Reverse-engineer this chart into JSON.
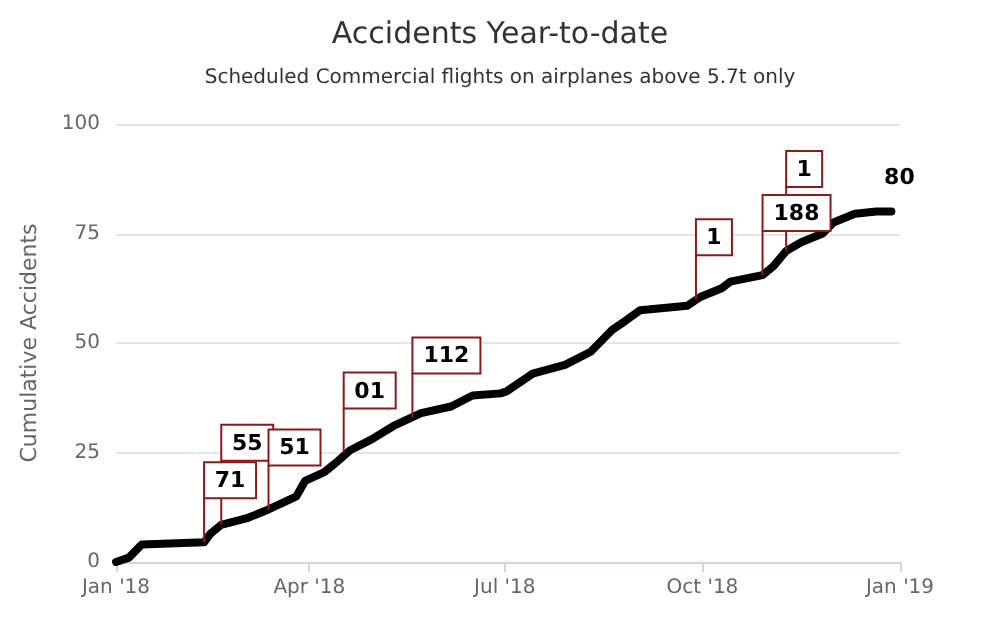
{
  "chart_data": {
    "type": "line",
    "title": "Accidents Year-to-date",
    "subtitle": "Scheduled Commercial flights on airplanes above 5.7t only",
    "ylabel": "Cumulative Accidents",
    "xlim": [
      "2018-01-01",
      "2019-01-01"
    ],
    "xticks": [
      {
        "value": "2018-01-01",
        "label": "Jan '18"
      },
      {
        "value": "2018-04-01",
        "label": "Apr '18"
      },
      {
        "value": "2018-07-01",
        "label": "Jul '18"
      },
      {
        "value": "2018-10-01",
        "label": "Oct '18"
      },
      {
        "value": "2019-01-01",
        "label": "Jan '19"
      }
    ],
    "ylim": [
      0,
      100
    ],
    "yticks": [
      0,
      25,
      50,
      75,
      100
    ],
    "grid": "y",
    "marker": "none",
    "line_style": "solid",
    "series": [
      {
        "color": "#000000",
        "x": [
          "2018-01-01",
          "2018-01-07",
          "2018-01-12",
          "2018-01-13",
          "2018-02-11",
          "2018-02-14",
          "2018-02-19",
          "2018-03-03",
          "2018-03-13",
          "2018-03-26",
          "2018-03-30",
          "2018-04-08",
          "2018-04-13",
          "2018-04-20",
          "2018-04-30",
          "2018-05-10",
          "2018-05-23",
          "2018-06-06",
          "2018-06-16",
          "2018-06-29",
          "2018-07-02",
          "2018-07-14",
          "2018-07-29",
          "2018-08-10",
          "2018-08-20",
          "2018-08-26",
          "2018-09-02",
          "2018-09-24",
          "2018-09-30",
          "2018-10-10",
          "2018-10-14",
          "2018-10-29",
          "2018-11-03",
          "2018-11-09",
          "2018-11-16",
          "2018-11-26",
          "2018-12-01",
          "2018-12-11",
          "2018-12-21",
          "2018-12-28"
        ],
        "values": [
          0,
          1,
          3.5,
          4,
          4.5,
          6.5,
          8.5,
          10,
          12,
          15,
          18.5,
          20.5,
          22.5,
          25.5,
          28,
          31,
          34,
          35.5,
          38,
          38.5,
          39,
          43,
          45,
          48,
          53,
          55,
          57.5,
          58.5,
          60.5,
          62.5,
          64,
          65.5,
          67.5,
          71,
          73,
          75,
          77.5,
          79.5,
          80,
          80
        ]
      }
    ],
    "annotations": [
      {
        "text": "71",
        "x": "2018-02-11",
        "y": 4.5
      },
      {
        "text": "55",
        "x": "2018-02-19",
        "y": 8.5
      },
      {
        "text": "51",
        "x": "2018-03-13",
        "y": 12
      },
      {
        "text": "01",
        "x": "2018-04-17",
        "y": 25
      },
      {
        "text": "112",
        "x": "2018-05-19",
        "y": 33
      },
      {
        "text": "1",
        "x": "2018-09-28",
        "y": 60
      },
      {
        "text": "188",
        "x": "2018-10-29",
        "y": 65.5
      },
      {
        "text": "1",
        "x": "2018-11-09",
        "y": 71
      },
      {
        "text": "80",
        "x": "2018-12-28",
        "y": 80
      }
    ]
  }
}
